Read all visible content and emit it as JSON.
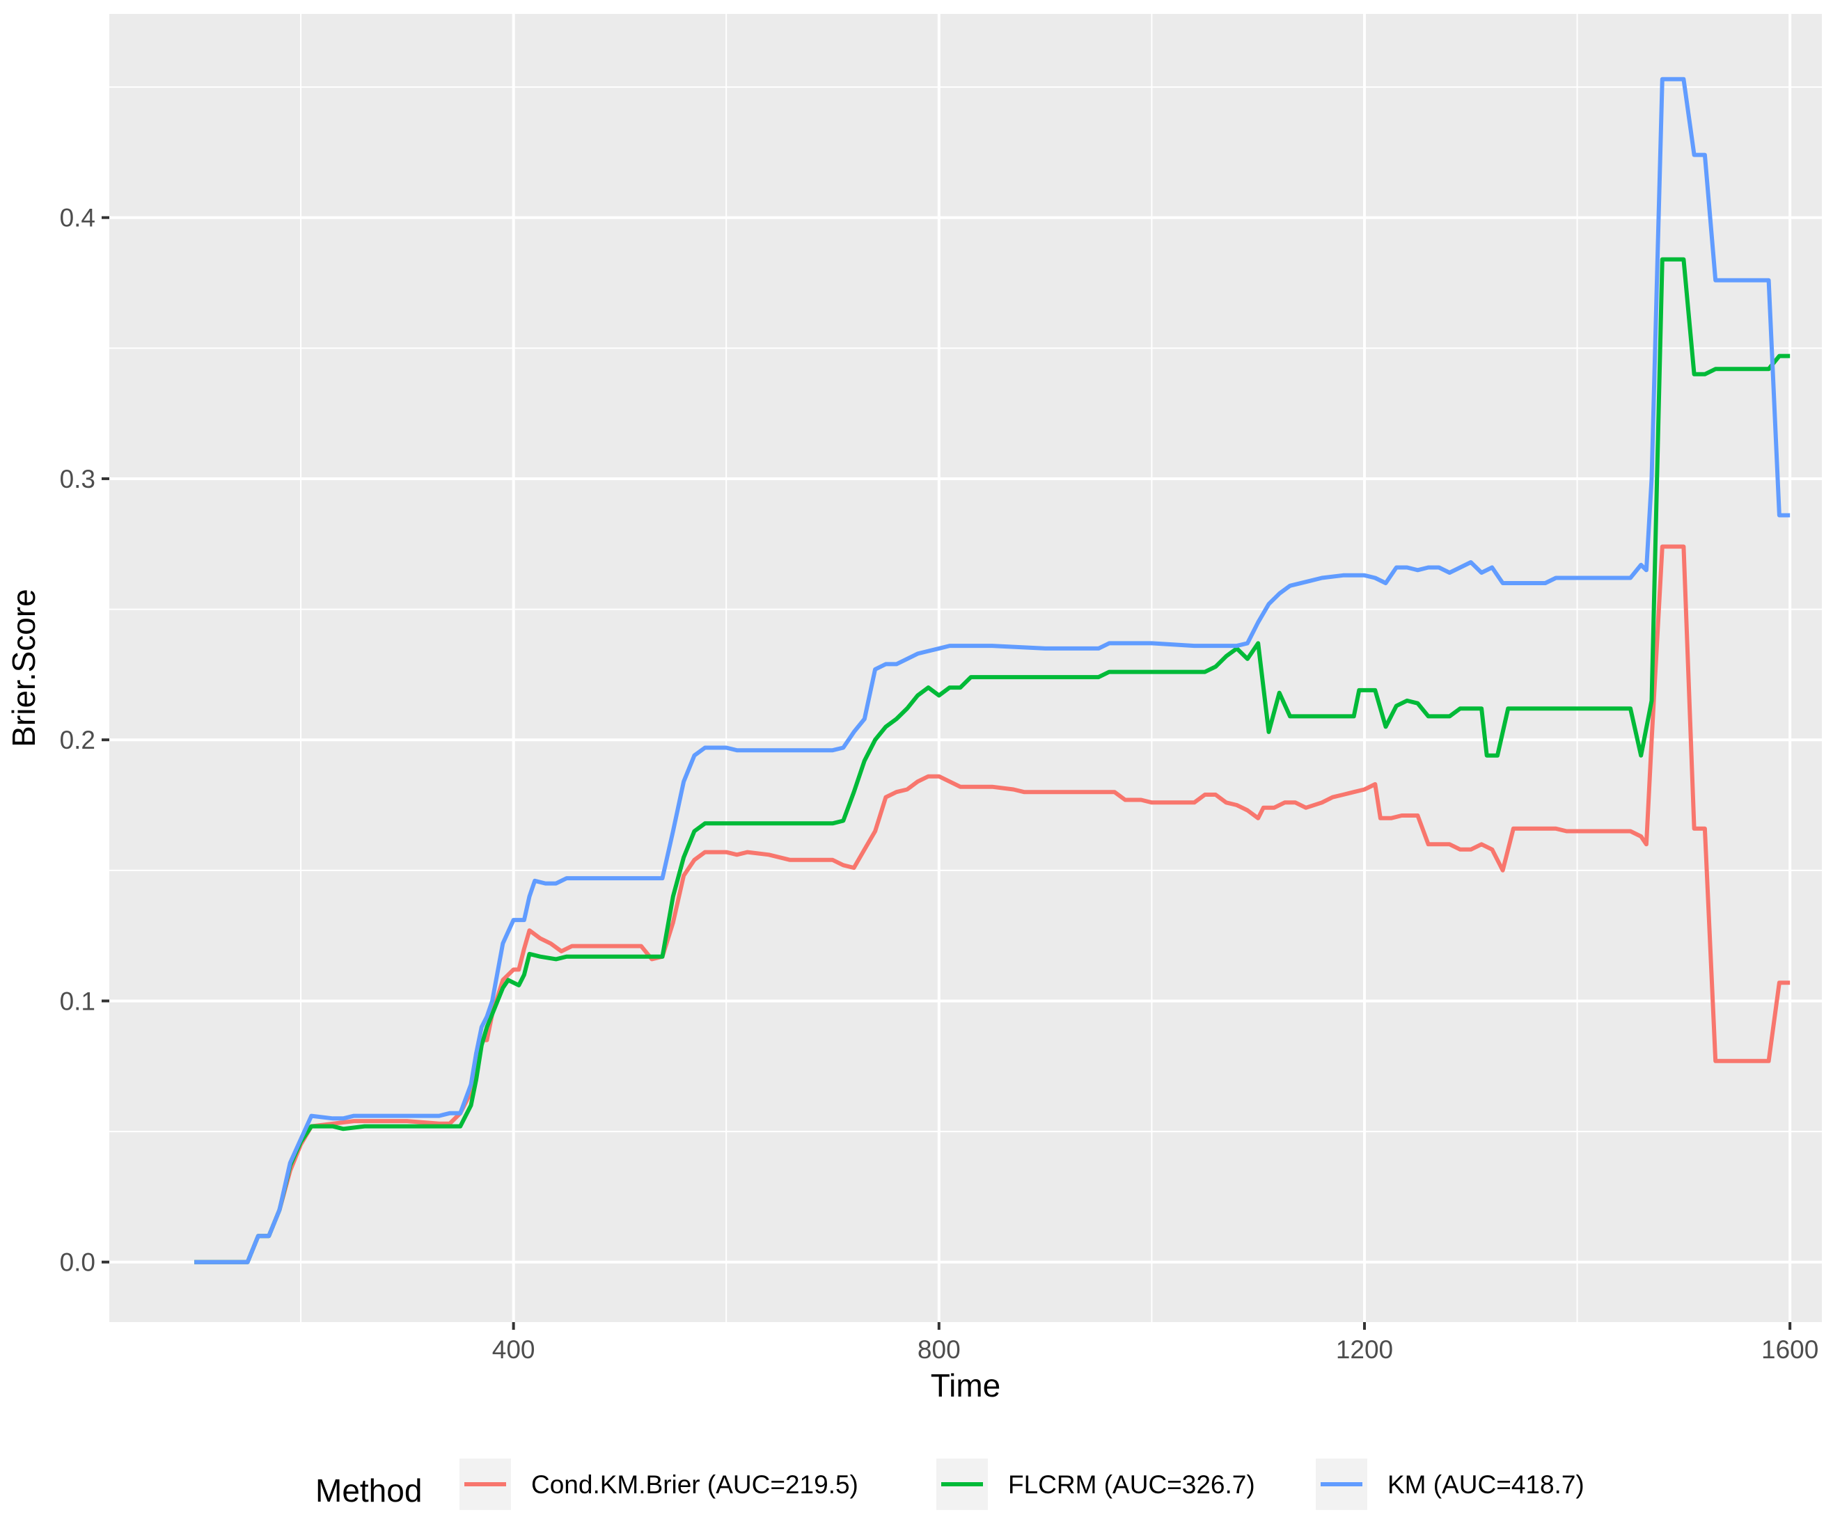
{
  "chart_data": {
    "type": "line",
    "xlabel": "Time",
    "ylabel": "Brier.Score",
    "xlim": [
      20,
      1630
    ],
    "ylim": [
      -0.023,
      0.478
    ],
    "x_ticks": [
      400,
      800,
      1200,
      1600
    ],
    "x_tick_labels": [
      "400",
      "800",
      "1200",
      "1600"
    ],
    "y_ticks": [
      0.0,
      0.1,
      0.2,
      0.3,
      0.4
    ],
    "y_tick_labels": [
      "0.0",
      "0.1",
      "0.2",
      "0.3",
      "0.4"
    ],
    "grid": true,
    "legend": {
      "title": "Method",
      "placement": "bottom"
    },
    "series": [
      {
        "name": "Cond.KM.Brier (AUC=219.5)",
        "color": "#F8766D",
        "points": [
          [
            100,
            0.0
          ],
          [
            150,
            0.0
          ],
          [
            160,
            0.01
          ],
          [
            170,
            0.01
          ],
          [
            180,
            0.02
          ],
          [
            190,
            0.035
          ],
          [
            200,
            0.045
          ],
          [
            210,
            0.052
          ],
          [
            230,
            0.053
          ],
          [
            250,
            0.054
          ],
          [
            300,
            0.054
          ],
          [
            330,
            0.053
          ],
          [
            340,
            0.053
          ],
          [
            350,
            0.057
          ],
          [
            360,
            0.065
          ],
          [
            365,
            0.08
          ],
          [
            370,
            0.085
          ],
          [
            375,
            0.085
          ],
          [
            380,
            0.095
          ],
          [
            390,
            0.108
          ],
          [
            400,
            0.112
          ],
          [
            405,
            0.112
          ],
          [
            410,
            0.12
          ],
          [
            415,
            0.127
          ],
          [
            425,
            0.124
          ],
          [
            435,
            0.122
          ],
          [
            445,
            0.119
          ],
          [
            455,
            0.121
          ],
          [
            500,
            0.121
          ],
          [
            520,
            0.121
          ],
          [
            530,
            0.116
          ],
          [
            540,
            0.117
          ],
          [
            550,
            0.13
          ],
          [
            560,
            0.148
          ],
          [
            570,
            0.154
          ],
          [
            580,
            0.157
          ],
          [
            600,
            0.157
          ],
          [
            610,
            0.156
          ],
          [
            620,
            0.157
          ],
          [
            640,
            0.156
          ],
          [
            660,
            0.154
          ],
          [
            700,
            0.154
          ],
          [
            710,
            0.152
          ],
          [
            720,
            0.151
          ],
          [
            730,
            0.158
          ],
          [
            740,
            0.165
          ],
          [
            750,
            0.178
          ],
          [
            760,
            0.18
          ],
          [
            770,
            0.181
          ],
          [
            780,
            0.184
          ],
          [
            790,
            0.186
          ],
          [
            800,
            0.186
          ],
          [
            810,
            0.184
          ],
          [
            820,
            0.182
          ],
          [
            840,
            0.182
          ],
          [
            850,
            0.182
          ],
          [
            870,
            0.181
          ],
          [
            880,
            0.18
          ],
          [
            900,
            0.18
          ],
          [
            950,
            0.18
          ],
          [
            965,
            0.18
          ],
          [
            975,
            0.177
          ],
          [
            990,
            0.177
          ],
          [
            1000,
            0.176
          ],
          [
            1020,
            0.176
          ],
          [
            1040,
            0.176
          ],
          [
            1050,
            0.179
          ],
          [
            1060,
            0.179
          ],
          [
            1070,
            0.176
          ],
          [
            1080,
            0.175
          ],
          [
            1090,
            0.173
          ],
          [
            1100,
            0.17
          ],
          [
            1105,
            0.174
          ],
          [
            1115,
            0.174
          ],
          [
            1125,
            0.176
          ],
          [
            1135,
            0.176
          ],
          [
            1145,
            0.174
          ],
          [
            1160,
            0.176
          ],
          [
            1170,
            0.178
          ],
          [
            1180,
            0.179
          ],
          [
            1190,
            0.18
          ],
          [
            1200,
            0.181
          ],
          [
            1210,
            0.183
          ],
          [
            1215,
            0.17
          ],
          [
            1225,
            0.17
          ],
          [
            1235,
            0.171
          ],
          [
            1250,
            0.171
          ],
          [
            1260,
            0.16
          ],
          [
            1270,
            0.16
          ],
          [
            1280,
            0.16
          ],
          [
            1290,
            0.158
          ],
          [
            1300,
            0.158
          ],
          [
            1310,
            0.16
          ],
          [
            1320,
            0.158
          ],
          [
            1330,
            0.15
          ],
          [
            1340,
            0.166
          ],
          [
            1360,
            0.166
          ],
          [
            1380,
            0.166
          ],
          [
            1390,
            0.165
          ],
          [
            1450,
            0.165
          ],
          [
            1460,
            0.163
          ],
          [
            1465,
            0.16
          ],
          [
            1470,
            0.2
          ],
          [
            1480,
            0.274
          ],
          [
            1500,
            0.274
          ],
          [
            1510,
            0.166
          ],
          [
            1520,
            0.166
          ],
          [
            1530,
            0.077
          ],
          [
            1560,
            0.077
          ],
          [
            1580,
            0.077
          ],
          [
            1590,
            0.107
          ],
          [
            1600,
            0.107
          ]
        ]
      },
      {
        "name": "FLCRM (AUC=326.7)",
        "color": "#00BA38",
        "points": [
          [
            100,
            0.0
          ],
          [
            150,
            0.0
          ],
          [
            160,
            0.01
          ],
          [
            170,
            0.01
          ],
          [
            180,
            0.02
          ],
          [
            190,
            0.037
          ],
          [
            200,
            0.046
          ],
          [
            210,
            0.052
          ],
          [
            230,
            0.052
          ],
          [
            240,
            0.051
          ],
          [
            260,
            0.052
          ],
          [
            300,
            0.052
          ],
          [
            330,
            0.052
          ],
          [
            340,
            0.052
          ],
          [
            350,
            0.052
          ],
          [
            360,
            0.06
          ],
          [
            365,
            0.07
          ],
          [
            370,
            0.083
          ],
          [
            375,
            0.09
          ],
          [
            380,
            0.095
          ],
          [
            390,
            0.105
          ],
          [
            395,
            0.108
          ],
          [
            400,
            0.107
          ],
          [
            405,
            0.106
          ],
          [
            410,
            0.11
          ],
          [
            415,
            0.118
          ],
          [
            425,
            0.117
          ],
          [
            440,
            0.116
          ],
          [
            450,
            0.117
          ],
          [
            500,
            0.117
          ],
          [
            540,
            0.117
          ],
          [
            550,
            0.14
          ],
          [
            560,
            0.155
          ],
          [
            570,
            0.165
          ],
          [
            580,
            0.168
          ],
          [
            600,
            0.168
          ],
          [
            650,
            0.168
          ],
          [
            700,
            0.168
          ],
          [
            710,
            0.169
          ],
          [
            720,
            0.18
          ],
          [
            730,
            0.192
          ],
          [
            740,
            0.2
          ],
          [
            750,
            0.205
          ],
          [
            760,
            0.208
          ],
          [
            770,
            0.212
          ],
          [
            780,
            0.217
          ],
          [
            790,
            0.22
          ],
          [
            800,
            0.217
          ],
          [
            810,
            0.22
          ],
          [
            820,
            0.22
          ],
          [
            830,
            0.224
          ],
          [
            850,
            0.224
          ],
          [
            900,
            0.224
          ],
          [
            950,
            0.224
          ],
          [
            960,
            0.226
          ],
          [
            1000,
            0.226
          ],
          [
            1040,
            0.226
          ],
          [
            1050,
            0.226
          ],
          [
            1060,
            0.228
          ],
          [
            1070,
            0.232
          ],
          [
            1080,
            0.235
          ],
          [
            1090,
            0.231
          ],
          [
            1100,
            0.237
          ],
          [
            1110,
            0.203
          ],
          [
            1120,
            0.218
          ],
          [
            1130,
            0.209
          ],
          [
            1150,
            0.209
          ],
          [
            1190,
            0.209
          ],
          [
            1195,
            0.219
          ],
          [
            1210,
            0.219
          ],
          [
            1220,
            0.205
          ],
          [
            1230,
            0.213
          ],
          [
            1240,
            0.215
          ],
          [
            1250,
            0.214
          ],
          [
            1260,
            0.209
          ],
          [
            1280,
            0.209
          ],
          [
            1290,
            0.212
          ],
          [
            1310,
            0.212
          ],
          [
            1315,
            0.194
          ],
          [
            1325,
            0.194
          ],
          [
            1335,
            0.212
          ],
          [
            1350,
            0.212
          ],
          [
            1400,
            0.212
          ],
          [
            1450,
            0.212
          ],
          [
            1460,
            0.194
          ],
          [
            1470,
            0.215
          ],
          [
            1480,
            0.384
          ],
          [
            1500,
            0.384
          ],
          [
            1510,
            0.34
          ],
          [
            1520,
            0.34
          ],
          [
            1530,
            0.342
          ],
          [
            1560,
            0.342
          ],
          [
            1580,
            0.342
          ],
          [
            1590,
            0.347
          ],
          [
            1600,
            0.347
          ]
        ]
      },
      {
        "name": "KM (AUC=418.7)",
        "color": "#619CFF",
        "points": [
          [
            100,
            0.0
          ],
          [
            150,
            0.0
          ],
          [
            160,
            0.01
          ],
          [
            170,
            0.01
          ],
          [
            180,
            0.02
          ],
          [
            190,
            0.038
          ],
          [
            200,
            0.047
          ],
          [
            210,
            0.056
          ],
          [
            230,
            0.055
          ],
          [
            240,
            0.055
          ],
          [
            250,
            0.056
          ],
          [
            300,
            0.056
          ],
          [
            330,
            0.056
          ],
          [
            340,
            0.057
          ],
          [
            350,
            0.057
          ],
          [
            360,
            0.068
          ],
          [
            365,
            0.08
          ],
          [
            370,
            0.09
          ],
          [
            375,
            0.094
          ],
          [
            380,
            0.1
          ],
          [
            390,
            0.122
          ],
          [
            400,
            0.131
          ],
          [
            405,
            0.131
          ],
          [
            410,
            0.131
          ],
          [
            415,
            0.14
          ],
          [
            420,
            0.146
          ],
          [
            430,
            0.145
          ],
          [
            440,
            0.145
          ],
          [
            450,
            0.147
          ],
          [
            500,
            0.147
          ],
          [
            530,
            0.147
          ],
          [
            540,
            0.147
          ],
          [
            550,
            0.165
          ],
          [
            560,
            0.184
          ],
          [
            570,
            0.194
          ],
          [
            580,
            0.197
          ],
          [
            600,
            0.197
          ],
          [
            610,
            0.196
          ],
          [
            640,
            0.196
          ],
          [
            650,
            0.196
          ],
          [
            700,
            0.196
          ],
          [
            710,
            0.197
          ],
          [
            720,
            0.203
          ],
          [
            730,
            0.208
          ],
          [
            740,
            0.227
          ],
          [
            750,
            0.229
          ],
          [
            760,
            0.229
          ],
          [
            770,
            0.231
          ],
          [
            780,
            0.233
          ],
          [
            790,
            0.234
          ],
          [
            800,
            0.235
          ],
          [
            810,
            0.236
          ],
          [
            850,
            0.236
          ],
          [
            900,
            0.235
          ],
          [
            950,
            0.235
          ],
          [
            960,
            0.237
          ],
          [
            1000,
            0.237
          ],
          [
            1040,
            0.236
          ],
          [
            1050,
            0.236
          ],
          [
            1080,
            0.236
          ],
          [
            1090,
            0.237
          ],
          [
            1100,
            0.245
          ],
          [
            1110,
            0.252
          ],
          [
            1120,
            0.256
          ],
          [
            1130,
            0.259
          ],
          [
            1150,
            0.261
          ],
          [
            1160,
            0.262
          ],
          [
            1180,
            0.263
          ],
          [
            1190,
            0.263
          ],
          [
            1200,
            0.263
          ],
          [
            1210,
            0.262
          ],
          [
            1220,
            0.26
          ],
          [
            1230,
            0.266
          ],
          [
            1240,
            0.266
          ],
          [
            1250,
            0.265
          ],
          [
            1260,
            0.266
          ],
          [
            1270,
            0.266
          ],
          [
            1280,
            0.264
          ],
          [
            1290,
            0.266
          ],
          [
            1300,
            0.268
          ],
          [
            1310,
            0.264
          ],
          [
            1320,
            0.266
          ],
          [
            1330,
            0.26
          ],
          [
            1370,
            0.26
          ],
          [
            1380,
            0.262
          ],
          [
            1440,
            0.262
          ],
          [
            1450,
            0.262
          ],
          [
            1460,
            0.267
          ],
          [
            1465,
            0.265
          ],
          [
            1470,
            0.3
          ],
          [
            1480,
            0.453
          ],
          [
            1500,
            0.453
          ],
          [
            1510,
            0.424
          ],
          [
            1520,
            0.424
          ],
          [
            1530,
            0.376
          ],
          [
            1560,
            0.376
          ],
          [
            1580,
            0.376
          ],
          [
            1590,
            0.286
          ],
          [
            1600,
            0.286
          ]
        ]
      }
    ]
  }
}
